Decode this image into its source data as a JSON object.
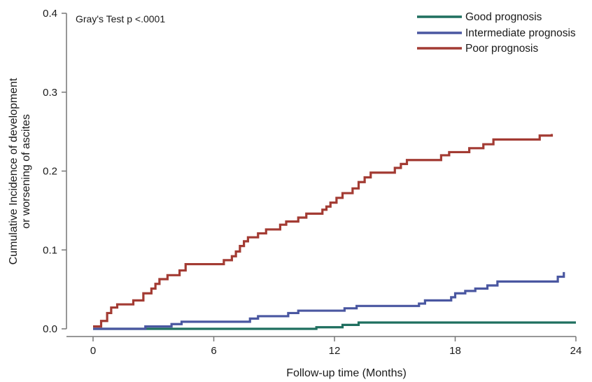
{
  "chart_data": {
    "type": "line",
    "line_style": "step",
    "title": "",
    "annotation": "Gray's Test p <.0001",
    "xlabel": "Follow-up time (Months)",
    "ylabel_lines": [
      "Cumulative Incidence of development",
      "or worsening of ascites"
    ],
    "xlim": [
      0,
      24
    ],
    "ylim": [
      0,
      0.4
    ],
    "xticks": [
      0,
      6,
      12,
      18,
      24
    ],
    "xtick_labels": [
      "0",
      "6",
      "12",
      "18",
      "24"
    ],
    "yticks": [
      0,
      0.1,
      0.2,
      0.3,
      0.4
    ],
    "ytick_labels": [
      "0.0",
      "0.1",
      "0.2",
      "0.3",
      "0.4"
    ],
    "grid": false,
    "legend_position": "top-right",
    "series": [
      {
        "name": "Good prognosis",
        "color": "#1f6f5f",
        "x": [
          0,
          11.1,
          12.4,
          13.2,
          24
        ],
        "y": [
          0,
          0.002,
          0.005,
          0.008,
          0.008
        ]
      },
      {
        "name": "Intermediate prognosis",
        "color": "#4a57a1",
        "x": [
          0,
          2.6,
          3.9,
          4.4,
          7.8,
          8.2,
          9.7,
          10.2,
          12.5,
          13.1,
          16.2,
          16.5,
          17.8,
          18.0,
          18.5,
          19.0,
          19.6,
          20.1,
          23.1,
          23.4
        ],
        "y": [
          0,
          0.003,
          0.006,
          0.009,
          0.013,
          0.016,
          0.02,
          0.023,
          0.026,
          0.029,
          0.032,
          0.036,
          0.04,
          0.045,
          0.048,
          0.051,
          0.055,
          0.06,
          0.066,
          0.072
        ]
      },
      {
        "name": "Poor prognosis",
        "color": "#a33b33",
        "x": [
          0,
          0.4,
          0.7,
          0.9,
          1.2,
          2.0,
          2.5,
          2.9,
          3.1,
          3.3,
          3.7,
          4.3,
          4.6,
          6.5,
          6.9,
          7.1,
          7.3,
          7.5,
          7.7,
          8.2,
          8.6,
          9.3,
          9.6,
          10.2,
          10.6,
          11.4,
          11.6,
          11.8,
          12.1,
          12.4,
          12.9,
          13.2,
          13.5,
          13.8,
          15.0,
          15.3,
          15.6,
          17.3,
          17.7,
          18.7,
          19.4,
          19.9,
          22.2,
          22.8
        ],
        "y": [
          0.003,
          0.01,
          0.02,
          0.027,
          0.031,
          0.036,
          0.045,
          0.051,
          0.057,
          0.063,
          0.068,
          0.074,
          0.082,
          0.087,
          0.092,
          0.098,
          0.105,
          0.111,
          0.116,
          0.121,
          0.126,
          0.132,
          0.136,
          0.141,
          0.146,
          0.151,
          0.155,
          0.16,
          0.166,
          0.172,
          0.178,
          0.186,
          0.192,
          0.198,
          0.204,
          0.209,
          0.214,
          0.22,
          0.224,
          0.229,
          0.234,
          0.24,
          0.245,
          0.247
        ]
      }
    ]
  }
}
